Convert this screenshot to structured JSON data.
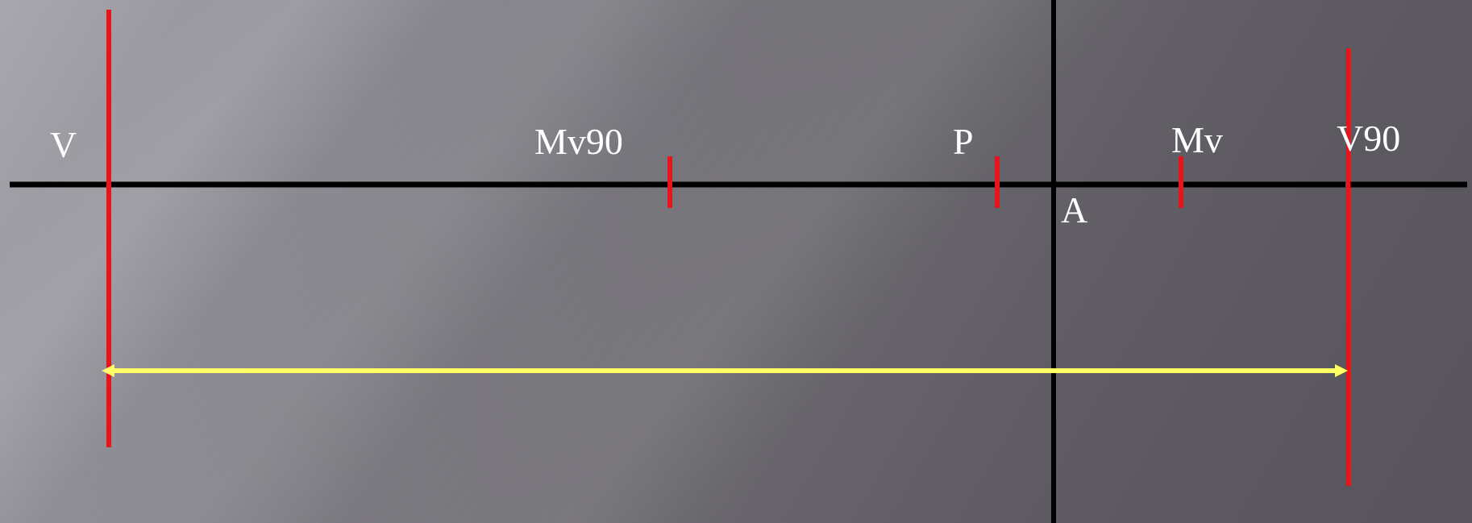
{
  "labels": {
    "v": "V",
    "mv90": "Mv90",
    "p": "P",
    "mv": "Mv",
    "v90": "V90",
    "a": "A"
  },
  "colors": {
    "axis": "#000000",
    "marker": "#e8141b",
    "arrow": "#ffff66",
    "text": "#ffffff"
  }
}
